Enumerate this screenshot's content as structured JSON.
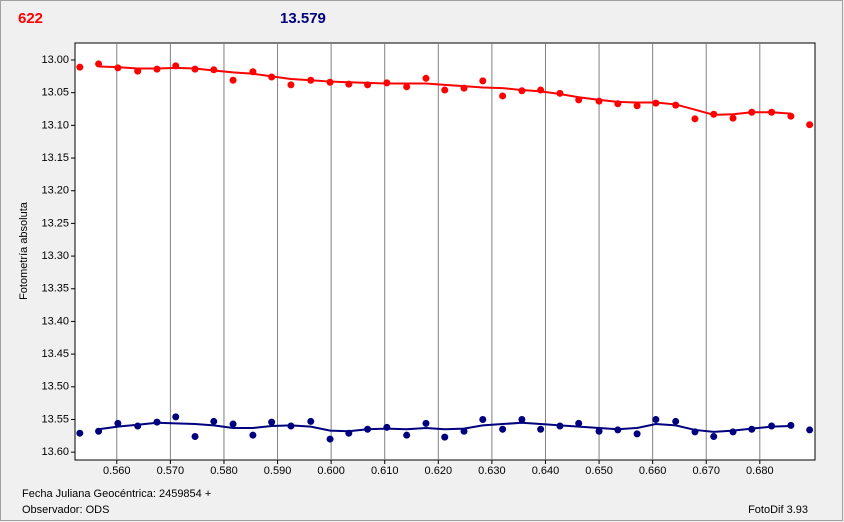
{
  "chart_data": {
    "type": "scatter",
    "ylabel": "Fotometría absoluta",
    "annotations": [
      "622",
      "13.579",
      "Fecha Juliana Geocéntrica: 2459854 +",
      "Observador: ODS",
      "FotoDif 3.93"
    ],
    "x": [
      0.5531,
      0.5566,
      0.5602,
      0.5639,
      0.5675,
      0.571,
      0.5746,
      0.5781,
      0.5817,
      0.5854,
      0.5889,
      0.5925,
      0.5962,
      0.5998,
      0.6033,
      0.6068,
      0.6104,
      0.6141,
      0.6177,
      0.6212,
      0.6248,
      0.6283,
      0.632,
      0.6356,
      0.6391,
      0.6427,
      0.6462,
      0.65,
      0.6535,
      0.6571,
      0.6606,
      0.6643,
      0.6679,
      0.6714,
      0.675,
      0.6785,
      0.6822,
      0.6858,
      0.6893
    ],
    "series": [
      {
        "style": "points",
        "color": "#ff0000",
        "values": [
          13.011,
          13.006,
          13.012,
          13.017,
          13.014,
          13.009,
          13.014,
          13.015,
          13.031,
          13.018,
          13.026,
          13.038,
          13.031,
          13.034,
          13.037,
          13.038,
          13.035,
          13.041,
          13.028,
          13.046,
          13.043,
          13.032,
          13.055,
          13.047,
          13.046,
          13.051,
          13.061,
          13.063,
          13.067,
          13.07,
          13.066,
          13.069,
          13.09,
          13.083,
          13.089,
          13.08,
          13.08,
          13.086,
          13.099
        ]
      },
      {
        "style": "line",
        "color": "#ff0000",
        "values": [
          null,
          13.01,
          13.011,
          13.013,
          13.013,
          13.012,
          13.013,
          13.016,
          13.019,
          13.021,
          13.025,
          13.029,
          13.031,
          13.033,
          13.034,
          13.035,
          13.036,
          13.036,
          13.036,
          13.038,
          13.04,
          13.042,
          13.043,
          13.046,
          13.048,
          13.052,
          13.057,
          13.061,
          13.064,
          13.065,
          13.065,
          13.068,
          13.076,
          13.084,
          13.083,
          13.08,
          13.08,
          13.082,
          null
        ]
      },
      {
        "style": "points",
        "color": "#00007f",
        "values": [
          13.571,
          13.568,
          13.556,
          13.56,
          13.554,
          13.546,
          13.576,
          13.553,
          13.557,
          13.574,
          13.554,
          13.56,
          13.553,
          13.58,
          13.571,
          13.565,
          13.562,
          13.574,
          13.556,
          13.577,
          13.568,
          13.55,
          13.565,
          13.55,
          13.565,
          13.56,
          13.556,
          13.568,
          13.566,
          13.572,
          13.55,
          13.553,
          13.569,
          13.576,
          13.569,
          13.565,
          13.56,
          13.559,
          13.566
        ]
      },
      {
        "style": "line",
        "color": "#00007f",
        "values": [
          null,
          13.565,
          13.561,
          13.558,
          13.555,
          13.556,
          13.557,
          13.559,
          13.563,
          13.563,
          13.56,
          13.559,
          13.561,
          13.567,
          13.568,
          13.565,
          13.564,
          13.565,
          13.563,
          13.565,
          13.564,
          13.559,
          13.557,
          13.555,
          13.557,
          13.559,
          13.561,
          13.563,
          13.565,
          13.563,
          13.557,
          13.559,
          13.566,
          13.569,
          13.567,
          13.564,
          13.561,
          13.56,
          null
        ]
      }
    ],
    "xlim": [
      0.5522,
      0.6903
    ],
    "ylim": [
      13.612,
      12.974
    ],
    "xticks": [
      {
        "value": 0.56,
        "label": "0.560"
      },
      {
        "value": 0.57,
        "label": "0.570"
      },
      {
        "value": 0.58,
        "label": "0.580"
      },
      {
        "value": 0.59,
        "label": "0.590"
      },
      {
        "value": 0.6,
        "label": "0.600"
      },
      {
        "value": 0.61,
        "label": "0.610"
      },
      {
        "value": 0.62,
        "label": "0.620"
      },
      {
        "value": 0.63,
        "label": "0.630"
      },
      {
        "value": 0.64,
        "label": "0.640"
      },
      {
        "value": 0.65,
        "label": "0.650"
      },
      {
        "value": 0.66,
        "label": "0.660"
      },
      {
        "value": 0.67,
        "label": "0.670"
      },
      {
        "value": 0.68,
        "label": "0.680"
      }
    ],
    "yticks": [
      {
        "value": 13.0,
        "label": "13.00"
      },
      {
        "value": 13.05,
        "label": "13.05"
      },
      {
        "value": 13.1,
        "label": "13.10"
      },
      {
        "value": 13.15,
        "label": "13.15"
      },
      {
        "value": 13.2,
        "label": "13.20"
      },
      {
        "value": 13.25,
        "label": "13.25"
      },
      {
        "value": 13.3,
        "label": "13.30"
      },
      {
        "value": 13.35,
        "label": "13.35"
      },
      {
        "value": 13.4,
        "label": "13.40"
      },
      {
        "value": 13.45,
        "label": "13.45"
      },
      {
        "value": 13.5,
        "label": "13.50"
      },
      {
        "value": 13.55,
        "label": "13.55"
      },
      {
        "value": 13.6,
        "label": "13.60"
      }
    ],
    "grid": true
  }
}
